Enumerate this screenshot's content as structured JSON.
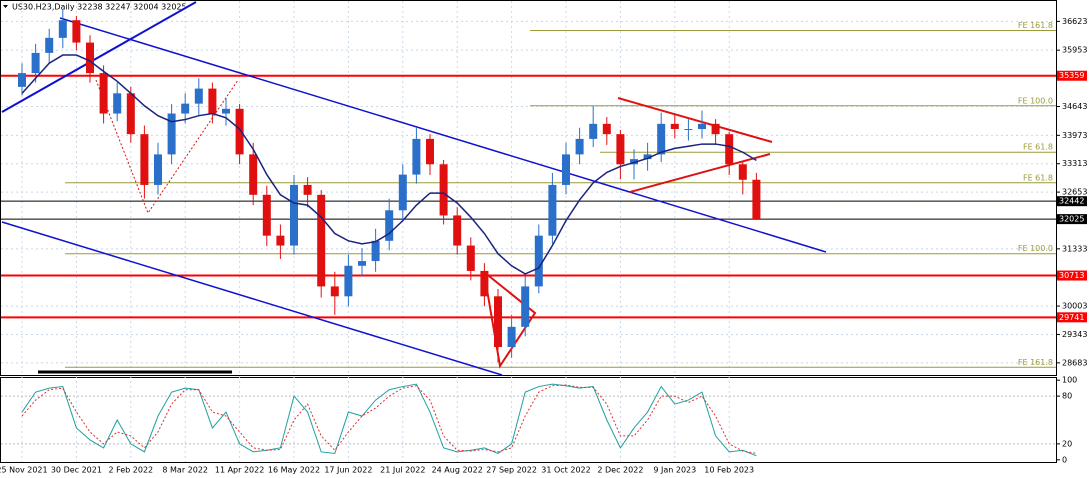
{
  "chart_data": [
    {
      "type": "candlestick",
      "title": "US30.H23,Daily  32238 32247 32004 32025",
      "categories": [
        "25 Nov 2021",
        null,
        null,
        null,
        "30 Dec 2021",
        null,
        null,
        null,
        "2 Feb 2022",
        null,
        null,
        null,
        "8 Mar 2022",
        null,
        null,
        null,
        "11 Apr 2022",
        null,
        null,
        null,
        "16 May 2022",
        null,
        null,
        null,
        "17 Jun 2022",
        null,
        null,
        null,
        "21 Jul 2022",
        null,
        null,
        null,
        "24 Aug 2022",
        null,
        null,
        null,
        "27 Sep 2022",
        null,
        null,
        null,
        "31 Oct 2022",
        null,
        null,
        null,
        "2 Dec 2022",
        null,
        null,
        null,
        "9 Jan 2023",
        null,
        null,
        null,
        "10 Feb 2023",
        null,
        null
      ],
      "open": [
        35100,
        35420,
        35890,
        36240,
        36650,
        36130,
        35420,
        34480,
        34950,
        34000,
        32820,
        33530,
        34480,
        34710,
        35060,
        34480,
        34590,
        33530,
        32590,
        31640,
        31410,
        32820,
        32590,
        30460,
        30230,
        30940,
        31050,
        31520,
        32230,
        33060,
        33890,
        33300,
        32110,
        31410,
        30820,
        30230,
        29050,
        29520,
        30460,
        31640,
        32820,
        33530,
        33890,
        34240,
        34000,
        33300,
        33420,
        33530,
        34240,
        34120,
        34120,
        34240,
        34000,
        33300,
        32940
      ],
      "high": [
        35650,
        36100,
        36450,
        36900,
        36750,
        36300,
        35600,
        35200,
        35100,
        34200,
        33800,
        34700,
        34950,
        35300,
        35200,
        34850,
        34700,
        33800,
        32800,
        31900,
        33050,
        33000,
        32700,
        30800,
        31200,
        31350,
        31800,
        32500,
        33300,
        34150,
        34000,
        33400,
        32300,
        31600,
        31000,
        30400,
        29800,
        30700,
        31900,
        33100,
        33800,
        34150,
        34650,
        34400,
        34100,
        33650,
        33800,
        34500,
        34450,
        34350,
        34550,
        34350,
        34050,
        33350,
        33100
      ],
      "low": [
        34900,
        35200,
        35650,
        36000,
        35950,
        35200,
        34250,
        34300,
        33800,
        32500,
        32600,
        33300,
        34250,
        34450,
        34250,
        34200,
        33300,
        32350,
        31400,
        31100,
        31200,
        32300,
        30200,
        29800,
        30000,
        30700,
        30800,
        31300,
        32000,
        32850,
        33050,
        31900,
        31200,
        30600,
        30000,
        28700,
        28800,
        29300,
        30300,
        31450,
        32600,
        33300,
        33700,
        33750,
        32950,
        32950,
        33150,
        33350,
        33900,
        33850,
        33900,
        33750,
        33050,
        32600,
        32004
      ],
      "close": [
        35420,
        35890,
        36240,
        36650,
        36130,
        35420,
        34480,
        34950,
        34000,
        32820,
        33530,
        34480,
        34710,
        35060,
        34480,
        34590,
        33530,
        32590,
        31640,
        31410,
        32820,
        32590,
        30460,
        30230,
        30940,
        31050,
        31520,
        32230,
        33060,
        33890,
        33300,
        32110,
        31410,
        30820,
        30230,
        29050,
        29520,
        30460,
        31640,
        32820,
        33530,
        33890,
        34240,
        34000,
        33300,
        33420,
        33530,
        34240,
        34120,
        34120,
        34240,
        34000,
        33300,
        32940,
        32025
      ],
      "bull_color": "#2a6fc9",
      "bear_color": "#e01010",
      "ma": {
        "color": "#1a237e",
        "values": [
          34950,
          35300,
          35650,
          35840,
          35840,
          35700,
          35460,
          35230,
          34950,
          34660,
          34430,
          34290,
          34340,
          34430,
          34480,
          34380,
          34120,
          33650,
          33060,
          32590,
          32400,
          32350,
          32070,
          31690,
          31520,
          31450,
          31500,
          31690,
          31990,
          32350,
          32630,
          32630,
          32400,
          32070,
          31690,
          31220,
          30940,
          30750,
          30890,
          31410,
          31990,
          32470,
          32870,
          33110,
          33250,
          33340,
          33440,
          33580,
          33670,
          33720,
          33770,
          33770,
          33720,
          33580,
          33390
        ]
      },
      "levels": [
        {
          "value": 35359,
          "color": "#ff0000"
        },
        {
          "value": 32442,
          "color": "#000000"
        },
        {
          "value": 32025,
          "color": "#000000"
        },
        {
          "value": 30713,
          "color": "#ff0000"
        },
        {
          "value": 29741,
          "color": "#ff0000"
        }
      ],
      "fibo": [
        {
          "label": "FE 161.8",
          "value": 36410
        },
        {
          "label": "FE 100.0",
          "value": 34660
        },
        {
          "label": "FE 61.8",
          "value": 33580
        },
        {
          "label": "FE 61.8",
          "value": 32870
        },
        {
          "label": "FE 100.0",
          "value": 31220
        },
        {
          "label": "FE 161.8",
          "value": 28580
        }
      ],
      "fibo_color": "#9a9a3a",
      "ylim": [
        28400,
        37120
      ],
      "yticks": [
        28683,
        29343,
        30003,
        31333,
        32653,
        33313,
        33973,
        34643,
        35953,
        36623
      ],
      "grid": true
    },
    {
      "type": "line",
      "series": [
        {
          "color": "#20a0a0",
          "values": [
            60,
            85,
            90,
            92,
            40,
            25,
            15,
            50,
            20,
            10,
            55,
            85,
            90,
            88,
            40,
            60,
            20,
            10,
            12,
            15,
            80,
            60,
            10,
            8,
            60,
            55,
            75,
            88,
            92,
            95,
            60,
            15,
            10,
            12,
            15,
            8,
            20,
            85,
            92,
            95,
            93,
            90,
            92,
            50,
            15,
            40,
            60,
            92,
            70,
            75,
            85,
            30,
            10,
            12,
            5
          ]
        },
        {
          "color": "#e03030",
          "values": [
            55,
            75,
            88,
            90,
            60,
            35,
            20,
            35,
            30,
            15,
            35,
            70,
            88,
            88,
            60,
            55,
            35,
            15,
            12,
            13,
            50,
            70,
            30,
            12,
            35,
            55,
            65,
            80,
            90,
            93,
            75,
            30,
            12,
            11,
            13,
            10,
            15,
            55,
            85,
            93,
            94,
            91,
            91,
            70,
            30,
            30,
            50,
            80,
            80,
            72,
            80,
            55,
            20,
            11,
            8
          ]
        }
      ],
      "ylim": [
        -4,
        104
      ],
      "yticks": [
        0,
        20,
        80,
        100
      ]
    }
  ]
}
